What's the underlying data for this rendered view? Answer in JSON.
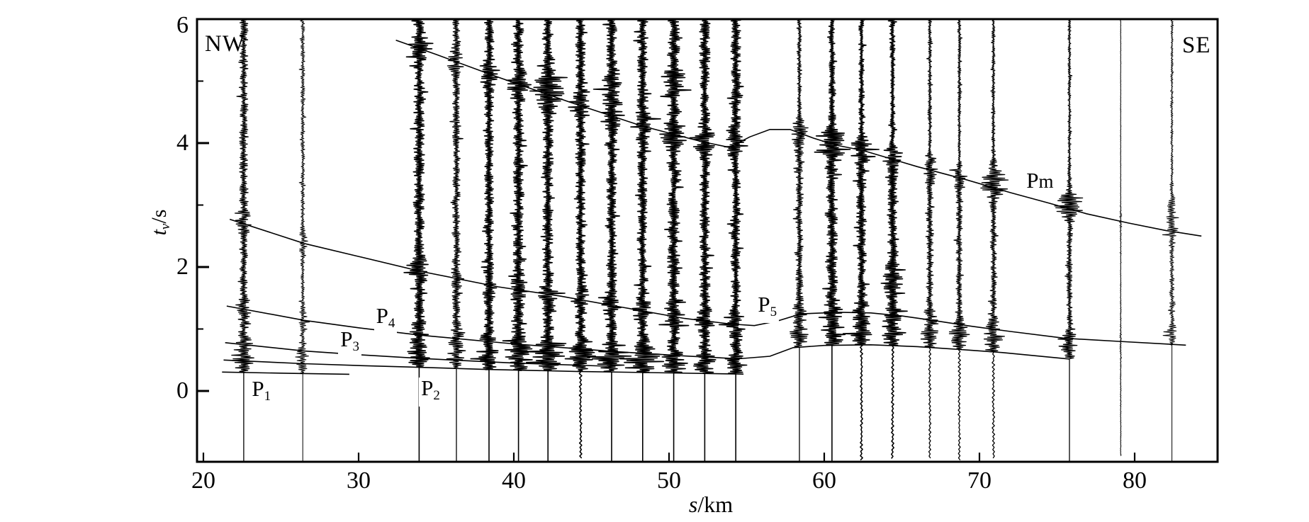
{
  "figure": {
    "background": "#ffffff",
    "ink": "#000000",
    "corner_labels": {
      "nw": "NW",
      "se": "SE"
    },
    "y_axis": {
      "title_main": "t",
      "title_sub": "v",
      "title_unit": "/s"
    },
    "x_axis": {
      "title_main": "s",
      "title_unit": "/km"
    }
  },
  "chart_data": {
    "type": "line",
    "subtype": "seismic-record-section",
    "xlabel": "s/km",
    "ylabel": "tv/s",
    "orientation_left": "NW",
    "orientation_right": "SE",
    "xlim": [
      19.5,
      85.3
    ],
    "ylim": [
      -1.14,
      6
    ],
    "x_ticks": [
      20,
      30,
      40,
      50,
      60,
      70,
      80
    ],
    "y_ticks": [
      0,
      2,
      4,
      6
    ],
    "y_minor_ticks": [
      1,
      3,
      5
    ],
    "grid": false,
    "traces": [
      {
        "km": 22.6,
        "amp": 6.0,
        "t_first": 0.3
      },
      {
        "km": 26.4,
        "amp": 3.0,
        "t_first": 0.285
      },
      {
        "km": 33.9,
        "amp": 7.5,
        "t_first": 0.38
      },
      {
        "km": 36.3,
        "amp": 5.5,
        "t_first": 0.36
      },
      {
        "km": 38.4,
        "amp": 6.5,
        "t_first": 0.345
      },
      {
        "km": 40.3,
        "amp": 7.5,
        "t_first": 0.33
      },
      {
        "km": 42.2,
        "amp": 7.5,
        "t_first": 0.325,
        "bursts": [
          {
            "t": 4.95,
            "g": 2.0
          }
        ]
      },
      {
        "km": 44.3,
        "amp": 7.0,
        "t_first": 0.315,
        "tail_wiggle": true
      },
      {
        "km": 46.3,
        "amp": 7.5,
        "t_first": 0.305,
        "bursts": [
          {
            "t": 4.9,
            "g": 2.0
          }
        ]
      },
      {
        "km": 48.3,
        "amp": 7.5,
        "t_first": 0.295
      },
      {
        "km": 50.3,
        "amp": 8.5,
        "t_first": 0.29,
        "bursts": [
          {
            "t": 5.0,
            "g": 2.0
          }
        ]
      },
      {
        "km": 52.3,
        "amp": 7.5,
        "t_first": 0.28
      },
      {
        "km": 54.3,
        "amp": 7.0,
        "t_first": 0.275
      },
      {
        "km": 58.4,
        "amp": 5.5,
        "t_first": 0.71
      },
      {
        "km": 60.5,
        "amp": 8.0,
        "t_first": 0.735,
        "bursts": [
          {
            "t": 4.05,
            "g": 2.3
          }
        ]
      },
      {
        "km": 62.4,
        "amp": 7.0,
        "t_first": 0.74,
        "tail_wiggle": true
      },
      {
        "km": 64.4,
        "amp": 6.5,
        "t_first": 0.73,
        "tail_wiggle": true,
        "bursts": [
          {
            "t": 1.8,
            "g": 2.3
          }
        ]
      },
      {
        "km": 66.8,
        "amp": 5.0,
        "t_first": 0.7,
        "tail_wiggle": true
      },
      {
        "km": 68.7,
        "amp": 4.5,
        "t_first": 0.67,
        "tail_wiggle": true
      },
      {
        "km": 70.9,
        "amp": 4.5,
        "t_first": 0.63,
        "tail_wiggle": true,
        "bursts": [
          {
            "t": 3.5,
            "g": 2.6
          }
        ]
      },
      {
        "km": 75.8,
        "amp": 4.0,
        "t_first": 0.52,
        "bursts": [
          {
            "t": 3.1,
            "g": 2.6
          }
        ]
      },
      {
        "km": 79.1,
        "amp": 0.7,
        "t_first": -1.05
      },
      {
        "km": 82.4,
        "amp": 3.2,
        "t_first": 0.74,
        "bursts": [
          {
            "t": 3.0,
            "g": 3.5
          }
        ]
      }
    ],
    "phases": [
      {
        "name": "P1",
        "label": {
          "main": "P",
          "sub": "1"
        },
        "label_pos": {
          "km": 23.9,
          "t": 0.01
        },
        "points": [
          [
            21.2,
            0.305
          ],
          [
            25.5,
            0.285
          ],
          [
            29.4,
            0.27
          ]
        ]
      },
      {
        "name": "P2",
        "label": {
          "main": "P",
          "sub": "2"
        },
        "label_pos": {
          "km": 34.8,
          "t": 0.02
        },
        "points": [
          [
            21.3,
            0.5
          ],
          [
            26.5,
            0.44
          ],
          [
            30,
            0.41
          ],
          [
            33.5,
            0.385
          ],
          [
            38,
            0.35
          ],
          [
            44,
            0.315
          ],
          [
            50,
            0.292
          ],
          [
            54.8,
            0.272
          ]
        ]
      },
      {
        "name": "P3",
        "label": {
          "main": "P",
          "sub": "3"
        },
        "label_pos": {
          "km": 29.6,
          "t": 0.81
        },
        "points": [
          [
            21.4,
            0.78
          ],
          [
            26.5,
            0.645
          ],
          [
            30,
            0.585
          ],
          [
            34,
            0.525
          ],
          [
            40,
            0.45
          ],
          [
            46,
            0.4
          ]
        ]
      },
      {
        "name": "P4",
        "label": {
          "main": "P",
          "sub": "4"
        },
        "label_pos": {
          "km": 31.9,
          "t": 1.19
        },
        "points": [
          [
            21.5,
            1.37
          ],
          [
            26.5,
            1.14
          ],
          [
            30,
            1.02
          ],
          [
            34,
            0.9
          ],
          [
            40,
            0.76
          ],
          [
            46,
            0.645
          ],
          [
            51,
            0.565
          ],
          [
            54.5,
            0.52
          ],
          [
            56.5,
            0.56
          ],
          [
            58,
            0.7
          ],
          [
            60,
            0.735
          ],
          [
            63,
            0.745
          ],
          [
            66,
            0.715
          ],
          [
            69,
            0.665
          ],
          [
            71.5,
            0.62
          ],
          [
            75.8,
            0.515
          ]
        ]
      },
      {
        "name": "P5",
        "label": {
          "main": "P",
          "sub": "5"
        },
        "label_pos": {
          "km": 56.5,
          "t": 1.37
        },
        "points": [
          [
            21.7,
            2.77
          ],
          [
            26.5,
            2.38
          ],
          [
            30,
            2.17
          ],
          [
            34,
            1.93
          ],
          [
            39,
            1.68
          ],
          [
            43,
            1.53
          ],
          [
            47,
            1.35
          ],
          [
            51,
            1.17
          ],
          [
            54,
            1.08
          ],
          [
            55.5,
            1.055
          ],
          [
            57,
            1.13
          ],
          [
            58.5,
            1.245
          ],
          [
            61,
            1.27
          ],
          [
            63,
            1.26
          ],
          [
            65,
            1.21
          ],
          [
            67,
            1.14
          ],
          [
            69.3,
            1.05
          ],
          [
            72,
            0.96
          ],
          [
            75.5,
            0.85
          ],
          [
            79,
            0.8
          ],
          [
            83.3,
            0.74
          ]
        ]
      },
      {
        "name": "Pm",
        "label": {
          "main": "P",
          "tail": "m"
        },
        "label_pos": {
          "km": 73.8,
          "t": 3.37
        },
        "points": [
          [
            32.4,
            5.66
          ],
          [
            35,
            5.43
          ],
          [
            38.8,
            5.08
          ],
          [
            43.5,
            4.67
          ],
          [
            48.2,
            4.28
          ],
          [
            52,
            4.03
          ],
          [
            53.9,
            3.93
          ],
          [
            55.2,
            4.1
          ],
          [
            56.5,
            4.22
          ],
          [
            57.8,
            4.22
          ],
          [
            59.3,
            4.08
          ],
          [
            60.7,
            3.97
          ],
          [
            62.5,
            3.88
          ],
          [
            66,
            3.62
          ],
          [
            69,
            3.42
          ],
          [
            72,
            3.2
          ],
          [
            74.5,
            3.03
          ],
          [
            76.9,
            2.86
          ],
          [
            79.6,
            2.71
          ],
          [
            82,
            2.59
          ],
          [
            84.3,
            2.5
          ]
        ]
      }
    ]
  }
}
